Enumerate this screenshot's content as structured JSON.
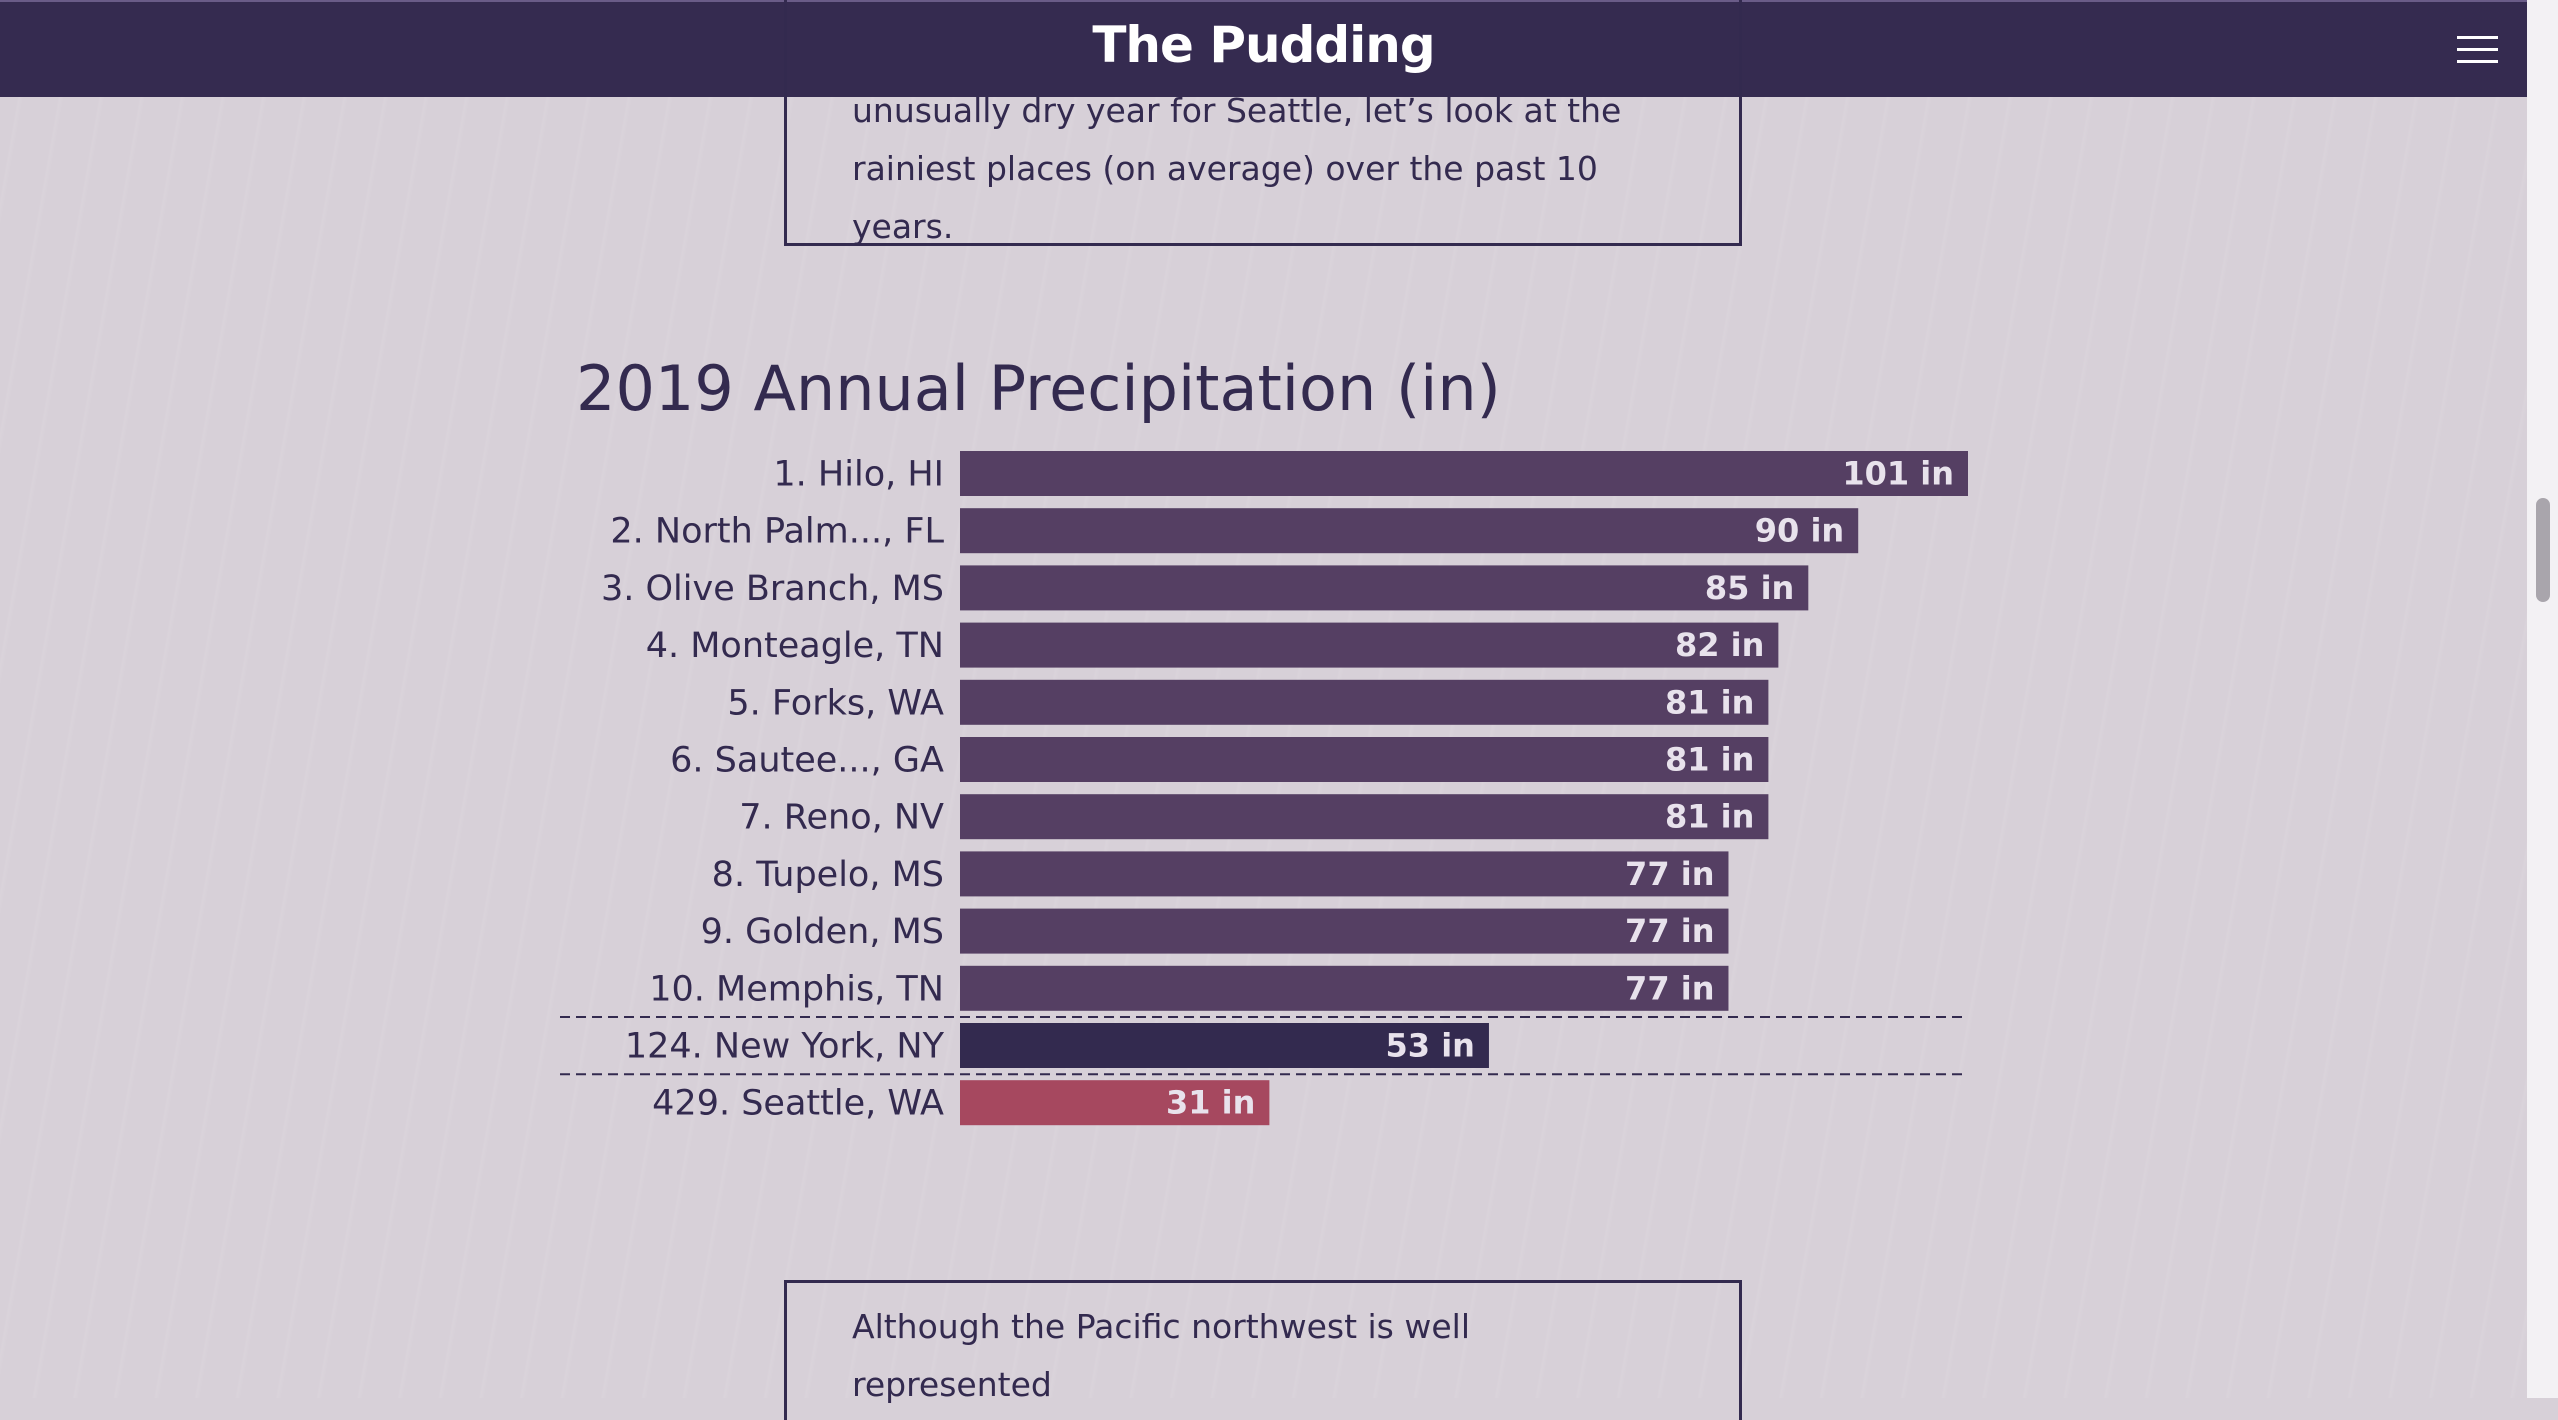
{
  "header": {
    "brand": "The Pudding",
    "menu_icon": "hamburger-menu-icon"
  },
  "intro": {
    "lines": [
      "unusually dry year for Seattle, let’s look at the",
      "rainiest places (on average) over the past 10 years."
    ]
  },
  "outro": {
    "lines": [
      "Although the Pacific northwest is well represented"
    ]
  },
  "colors": {
    "top": "#553f63",
    "nyc": "#332a4f",
    "seattle": "#a6485f"
  },
  "chart_data": {
    "type": "bar",
    "title": "2019 Annual Precipitation (in)",
    "unit": "in",
    "categories": [
      "1. Hilo, HI",
      "2. North Palm..., FL",
      "3. Olive Branch, MS",
      "4. Monteagle, TN",
      "5. Forks, WA",
      "6. Sautee..., GA",
      "7. Reno, NV",
      "8. Tupelo, MS",
      "9. Golden, MS",
      "10. Memphis, TN",
      "124. New York, NY",
      "429. Seattle, WA"
    ],
    "values": [
      101,
      90,
      85,
      82,
      81,
      81,
      81,
      77,
      77,
      77,
      53,
      31
    ],
    "value_labels": [
      "101 in",
      "90 in",
      "85 in",
      "82 in",
      "81 in",
      "81 in",
      "81 in",
      "77 in",
      "77 in",
      "77 in",
      "53 in",
      "31 in"
    ],
    "highlight": {
      "10": "nyc",
      "11": "seattle"
    },
    "xlim": [
      0,
      101
    ],
    "grid": false,
    "legend": "none"
  }
}
